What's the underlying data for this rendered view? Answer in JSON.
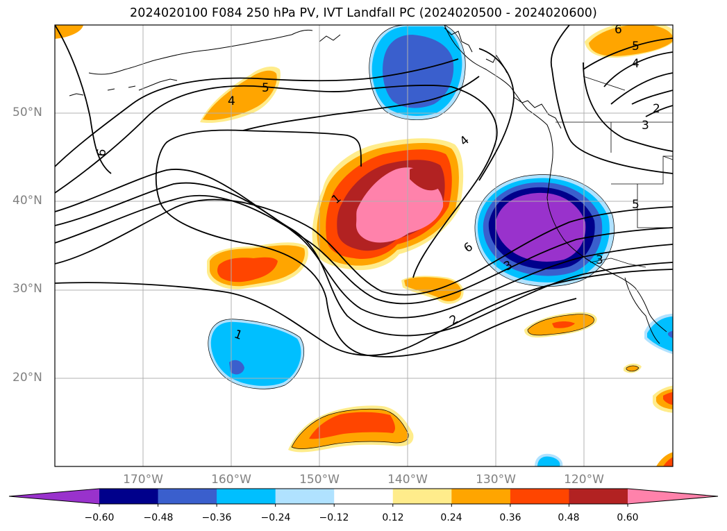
{
  "title": "2024020100 F084 250 hPa PV, IVT Landfall PC (2024020500 - 2024020600)",
  "map": {
    "lon_range": [
      -180,
      -110
    ],
    "lat_range": [
      10,
      60
    ],
    "lat_ticks": [
      {
        "value": 50,
        "label": "50°N"
      },
      {
        "value": 40,
        "label": "40°N"
      },
      {
        "value": 30,
        "label": "30°N"
      },
      {
        "value": 20,
        "label": "20°N"
      }
    ],
    "lon_ticks": [
      {
        "value": -170,
        "label": "170°W"
      },
      {
        "value": -160,
        "label": "160°W"
      },
      {
        "value": -150,
        "label": "150°W"
      },
      {
        "value": -140,
        "label": "140°W"
      },
      {
        "value": -130,
        "label": "130°W"
      },
      {
        "value": -120,
        "label": "120°W"
      }
    ],
    "gridlines": true,
    "contour_labels": [
      "5",
      "4",
      "6",
      "1",
      "4",
      "6",
      "3",
      "2",
      "1",
      "5",
      "4",
      "6",
      "2",
      "3",
      "5",
      "3"
    ]
  },
  "colorbar": {
    "levels": [
      "−0.60",
      "−0.48",
      "−0.36",
      "−0.24",
      "−0.12",
      "0.12",
      "0.24",
      "0.36",
      "0.48",
      "0.60"
    ],
    "colors": [
      "#9932cc",
      "#00008b",
      "#3a5fcd",
      "#00bfff",
      "#b0e2ff",
      "#ffffff",
      "#ffec8b",
      "#ffa500",
      "#ff4500",
      "#b22222",
      "#ff82ab"
    ],
    "extend": "both"
  }
}
